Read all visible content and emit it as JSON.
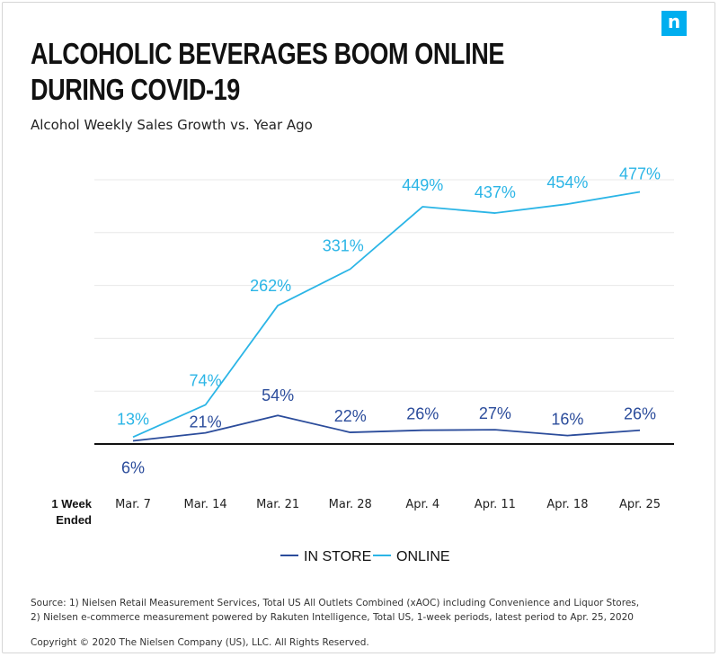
{
  "brand": {
    "logo_letter": "n",
    "logo_color": "#00aeef"
  },
  "xaxis_title": {
    "line1": "1 Week",
    "line2": "Ended"
  },
  "chart_data": {
    "type": "line",
    "title": [
      "ALCOHOLIC BEVERAGES BOOM ONLINE",
      "DURING COVID-19"
    ],
    "subtitle": "Alcohol Weekly Sales Growth vs. Year Ago",
    "categories": [
      "Mar. 7",
      "Mar. 14",
      "Mar. 21",
      "Mar. 28",
      "Apr. 4",
      "Apr. 11",
      "Apr. 18",
      "Apr. 25"
    ],
    "ylim": [
      0,
      500
    ],
    "grid": true,
    "legend_position": "bottom-center",
    "series": [
      {
        "name": "IN STORE",
        "color": "#2b4c9b",
        "values": [
          6,
          21,
          54,
          22,
          26,
          27,
          16,
          26
        ],
        "labels": [
          "6%",
          "21%",
          "54%",
          "22%",
          "26%",
          "27%",
          "16%",
          "26%"
        ]
      },
      {
        "name": "ONLINE",
        "color": "#2bb5e6",
        "values": [
          13,
          74,
          262,
          331,
          449,
          437,
          454,
          477
        ],
        "labels": [
          "13%",
          "74%",
          "262%",
          "331%",
          "449%",
          "437%",
          "454%",
          "477%"
        ]
      }
    ]
  },
  "footer": {
    "source_line1": "Source: 1) Nielsen Retail Measurement Services, Total US All Outlets Combined (xAOC) including Convenience and Liquor Stores,",
    "source_line2": "2) Nielsen e-commerce measurement powered by Rakuten Intelligence, Total US, 1-week periods, latest period to Apr. 25, 2020",
    "copyright": "Copyright © 2020 The Nielsen Company (US), LLC. All Rights Reserved."
  }
}
